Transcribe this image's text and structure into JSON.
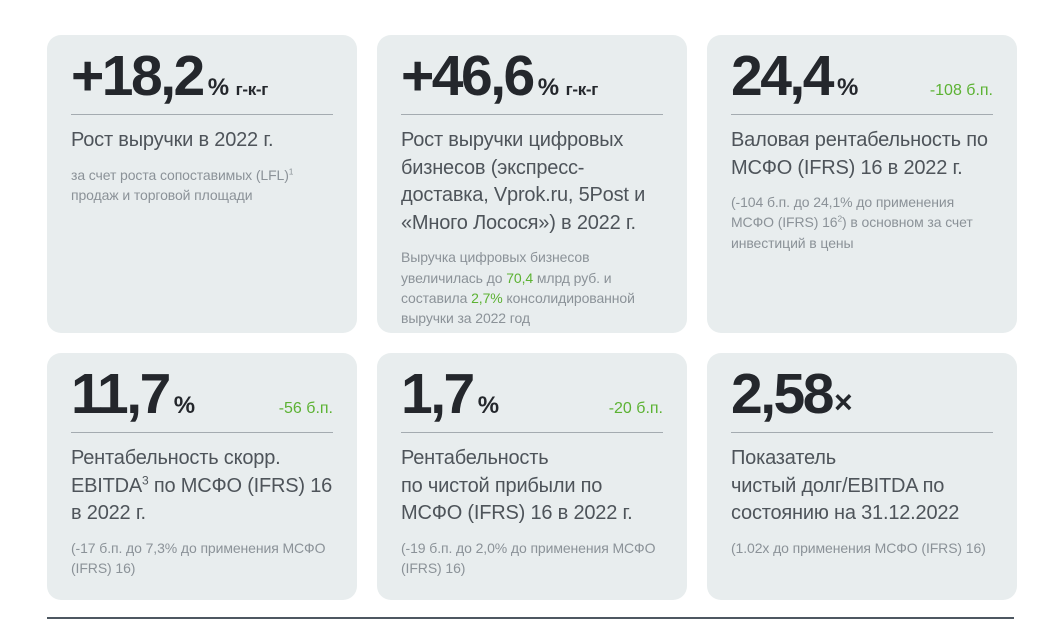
{
  "colors": {
    "card_background": "#e8edee",
    "value_text": "#24272c",
    "heading_text": "#4e545a",
    "description_text": "#8b9298",
    "accent_green": "#5cb233",
    "card_divider": "#a4abb0",
    "footer_rule": "#4d5761"
  },
  "cards": [
    {
      "value": "+18,2",
      "unit": "%",
      "period": "г-к-г",
      "heading": [
        {
          "t": "Рост выручки в 2022 г."
        }
      ],
      "desc": [
        {
          "t": "за счет роста сопоставимых (LFL)"
        },
        {
          "t": "1",
          "s": "sup"
        },
        {
          "t": " продаж и торговой площади"
        }
      ]
    },
    {
      "value": "+46,6",
      "unit": "%",
      "period": "г-к-г",
      "heading": [
        {
          "t": "Рост выручки цифровых бизнесов (экспресс-доставка, Vprok.ru, 5Post и «Много Лосося») в 2022 г."
        }
      ],
      "desc": [
        {
          "t": "Выручка цифровых бизнесов увеличилась до "
        },
        {
          "t": "70,4",
          "s": "green"
        },
        {
          "t": " млрд руб. и составила "
        },
        {
          "t": "2,7%",
          "s": "green"
        },
        {
          "t": " консолидированной выручки за 2022 год"
        }
      ]
    },
    {
      "value": "24,4",
      "unit": "%",
      "delta": "-108 б.п.",
      "heading": [
        {
          "t": "Валовая рентабельность по МСФО (IFRS) 16 в 2022 г."
        }
      ],
      "desc": [
        {
          "t": "(-104 б.п. до 24,1% до применения МСФО (IFRS) 16"
        },
        {
          "t": "2",
          "s": "sup"
        },
        {
          "t": ") в основном за счет инвестиций в цены"
        }
      ]
    },
    {
      "value": "11,7",
      "unit": "%",
      "delta": "-56 б.п.",
      "heading": [
        {
          "t": "Рентабельность скорр. EBITDA"
        },
        {
          "t": "3",
          "s": "sup"
        },
        {
          "t": " по МСФО (IFRS) 16 в 2022 г."
        }
      ],
      "desc": [
        {
          "t": "(-17 б.п. до 7,3% до применения МСФО (IFRS) 16)"
        }
      ]
    },
    {
      "value": "1,7",
      "unit": "%",
      "delta": "-20 б.п.",
      "heading": [
        {
          "t": "Рентабельность"
        },
        {
          "s": "br"
        },
        {
          "t": "по чистой прибыли по"
        },
        {
          "s": "br"
        },
        {
          "t": "МСФО (IFRS) 16 в 2022 г."
        }
      ],
      "desc": [
        {
          "t": "(-19 б.п. до 2,0% до применения МСФО (IFRS) 16)"
        }
      ]
    },
    {
      "value": "2,58",
      "times": "×",
      "heading": [
        {
          "t": "Показатель"
        },
        {
          "s": "br"
        },
        {
          "t": "чистый долг/EBITDA по"
        },
        {
          "s": "br"
        },
        {
          "t": "состоянию на 31.12.2022"
        }
      ],
      "desc": [
        {
          "t": "(1.02x до применения МСФО (IFRS) 16)"
        }
      ]
    }
  ]
}
